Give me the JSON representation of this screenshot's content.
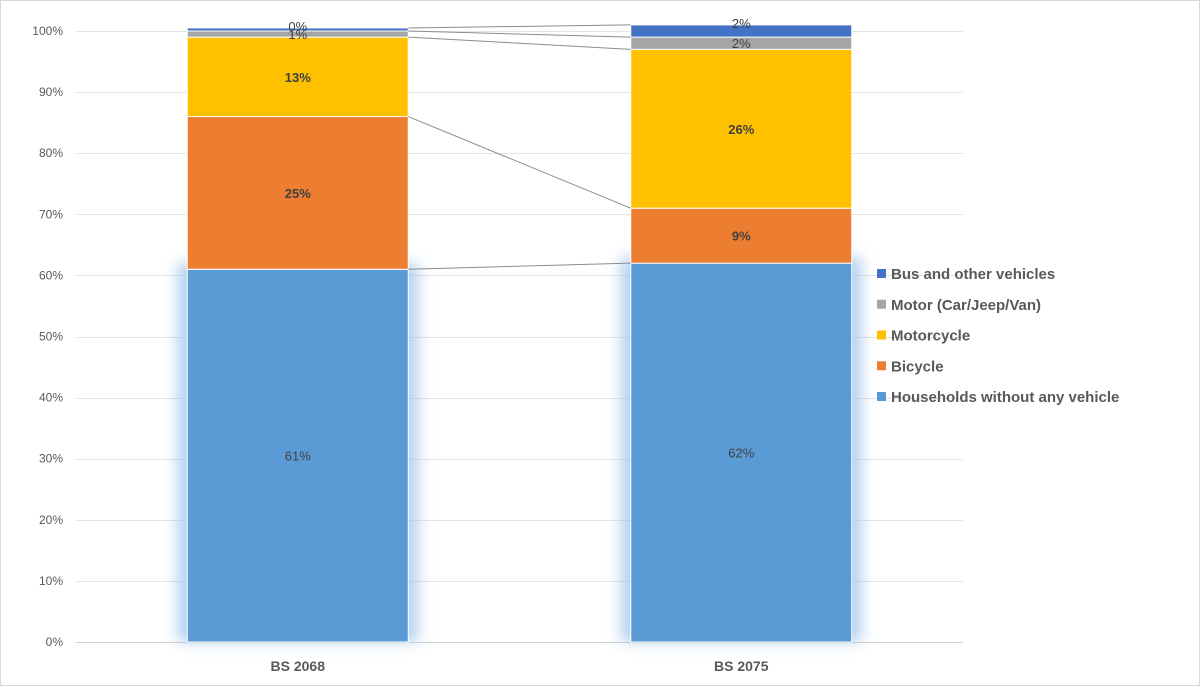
{
  "chart_data": {
    "type": "bar",
    "stacked": true,
    "normalized_percent": true,
    "categories": [
      "BS 2068",
      "BS 2075"
    ],
    "ylim": [
      0,
      100
    ],
    "y_ticks": [
      "0%",
      "10%",
      "20%",
      "30%",
      "40%",
      "50%",
      "60%",
      "70%",
      "80%",
      "90%",
      "100%"
    ],
    "grid": true,
    "series_lines": true,
    "legend_position": "right",
    "series": [
      {
        "name": "Households without any vehicle",
        "color": "#5B9BD5",
        "values": [
          61,
          62
        ],
        "labels": [
          "61%",
          "62%"
        ],
        "label_bold": false
      },
      {
        "name": "Bicycle",
        "color": "#ED7D31",
        "values": [
          25,
          9
        ],
        "labels": [
          "25%",
          "9%"
        ],
        "label_bold": true
      },
      {
        "name": "Motorcycle",
        "color": "#FFC000",
        "values": [
          13,
          26
        ],
        "labels": [
          "13%",
          "26%"
        ],
        "label_bold": true
      },
      {
        "name": "Motor (Car/Jeep/Van)",
        "color": "#A5A5A5",
        "values": [
          1,
          2
        ],
        "labels": [
          "1%",
          "2%"
        ],
        "label_bold": false
      },
      {
        "name": "Bus and other vehicles",
        "color": "#4472C4",
        "values": [
          0.5,
          2
        ],
        "labels": [
          "0%",
          "2%"
        ],
        "label_bold": false
      }
    ]
  }
}
